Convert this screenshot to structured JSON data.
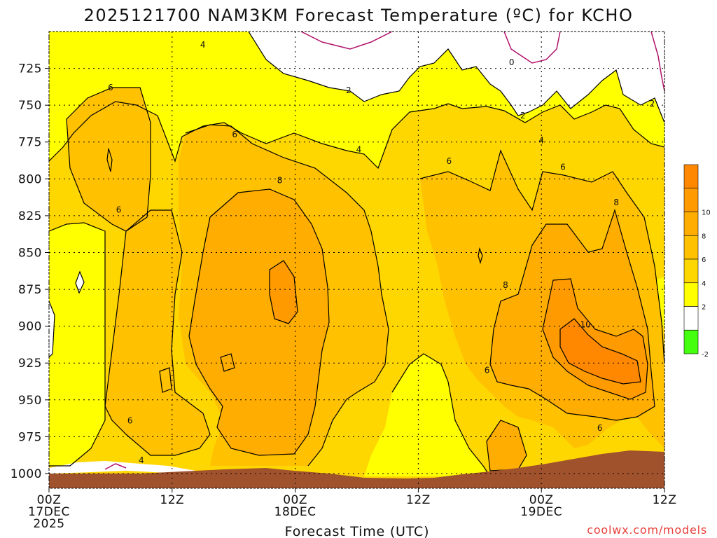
{
  "chart_data": {
    "type": "contour",
    "title": "2025121700 NAM3KM Forecast Temperature (ºC) for KCHO",
    "xlabel": "Forecast Time (UTC)",
    "ylabel": "",
    "x_ticks": [
      {
        "hour": 0,
        "lines": [
          "00Z",
          "17DEC",
          "2025"
        ]
      },
      {
        "hour": 12,
        "lines": [
          "12Z"
        ]
      },
      {
        "hour": 24,
        "lines": [
          "00Z",
          "18DEC"
        ]
      },
      {
        "hour": 36,
        "lines": [
          "12Z"
        ]
      },
      {
        "hour": 48,
        "lines": [
          "00Z",
          "19DEC"
        ]
      },
      {
        "hour": 60,
        "lines": [
          "12Z"
        ]
      }
    ],
    "xlim_hours": [
      0,
      60
    ],
    "y_ticks": [
      725,
      750,
      775,
      800,
      825,
      850,
      875,
      900,
      925,
      950,
      975,
      1000
    ],
    "ylim_hpa": [
      700,
      1010
    ],
    "grid": true,
    "contour_levels": [
      -2,
      0,
      2,
      4,
      6,
      8,
      10
    ],
    "colorbar": {
      "bins": [
        {
          "label": "",
          "color": "#ff8800"
        },
        {
          "label": "10",
          "color": "#ff9a00"
        },
        {
          "label": "8",
          "color": "#ffad00"
        },
        {
          "label": "6",
          "color": "#ffc100"
        },
        {
          "label": "4",
          "color": "#ffd700"
        },
        {
          "label": "2",
          "color": "#ffff00"
        },
        {
          "label": "",
          "color": "#ffffff"
        },
        {
          "label": "-2",
          "color": "#44ff0e"
        }
      ]
    },
    "terrain_color": "#a0522d",
    "contour_labels": [
      {
        "text": "4",
        "hour": 15.0,
        "p": 709
      },
      {
        "text": "6",
        "hour": 6.0,
        "p": 738
      },
      {
        "text": "2",
        "hour": 29.2,
        "p": 740
      },
      {
        "text": "0",
        "hour": 45.1,
        "p": 721
      },
      {
        "text": "6",
        "hour": 18.1,
        "p": 770
      },
      {
        "text": "4",
        "hour": 30.2,
        "p": 780
      },
      {
        "text": "2",
        "hour": 46.2,
        "p": 757
      },
      {
        "text": "4",
        "hour": 48.0,
        "p": 774
      },
      {
        "text": "2",
        "hour": 58.8,
        "p": 749
      },
      {
        "text": "8",
        "hour": 22.5,
        "p": 801
      },
      {
        "text": "6",
        "hour": 39.0,
        "p": 788
      },
      {
        "text": "6",
        "hour": 50.1,
        "p": 792
      },
      {
        "text": "6",
        "hour": 6.8,
        "p": 821
      },
      {
        "text": "8",
        "hour": 55.3,
        "p": 816
      },
      {
        "text": "8",
        "hour": 44.5,
        "p": 872
      },
      {
        "text": "10",
        "hour": 52.3,
        "p": 899
      },
      {
        "text": "6",
        "hour": 42.7,
        "p": 930
      },
      {
        "text": "6",
        "hour": 7.9,
        "p": 964
      },
      {
        "text": "6",
        "hour": 53.7,
        "p": 969
      },
      {
        "text": "4",
        "hour": 9.0,
        "p": 991
      }
    ]
  },
  "credit": "coolwx.com/models"
}
